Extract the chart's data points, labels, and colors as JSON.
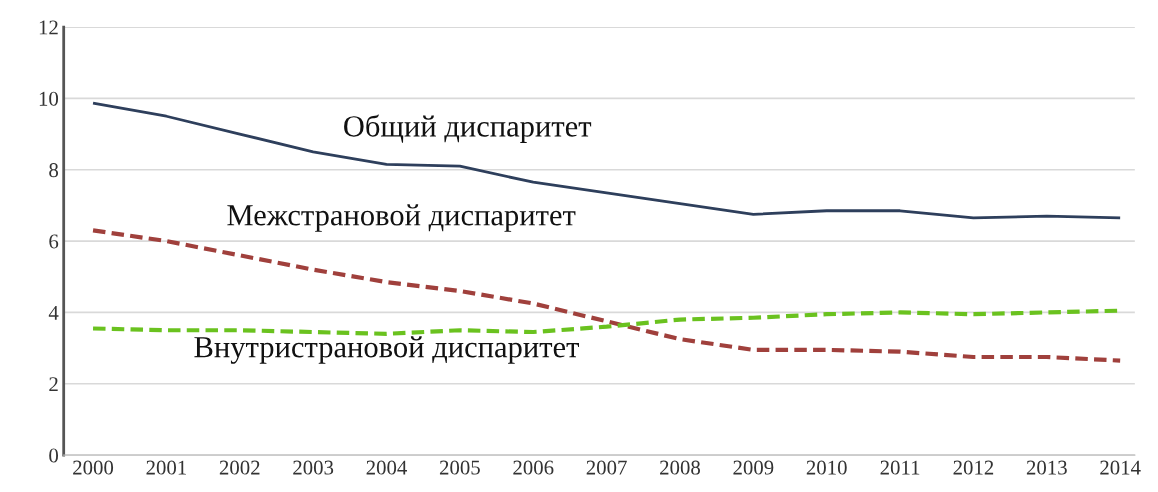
{
  "chart_data": {
    "type": "line",
    "categories": [
      "2000",
      "2001",
      "2002",
      "2003",
      "2004",
      "2005",
      "2006",
      "2007",
      "2008",
      "2009",
      "2010",
      "2011",
      "2012",
      "2013",
      "2014"
    ],
    "series": [
      {
        "name": "Общий диспаритет",
        "color": "#2e3f5c",
        "line_style": "solid",
        "values": [
          9.87,
          9.5,
          9.0,
          8.5,
          8.15,
          8.1,
          7.65,
          7.35,
          7.05,
          6.75,
          6.85,
          6.85,
          6.65,
          6.7,
          6.65
        ]
      },
      {
        "name": "Межстрановой диспаритет",
        "color": "#a0403c",
        "line_style": "dashed",
        "values": [
          6.3,
          6.0,
          5.6,
          5.2,
          4.85,
          4.6,
          4.25,
          3.75,
          3.25,
          2.95,
          2.95,
          2.9,
          2.75,
          2.75,
          2.65
        ]
      },
      {
        "name": "Внутристрановой диспаритет",
        "color": "#6ac21f",
        "line_style": "dashed",
        "values": [
          3.55,
          3.5,
          3.5,
          3.45,
          3.4,
          3.5,
          3.45,
          3.6,
          3.8,
          3.85,
          3.95,
          4.0,
          3.95,
          4.0,
          4.05
        ]
      }
    ],
    "ylim": [
      0,
      12
    ],
    "yticks": [
      0,
      2,
      4,
      6,
      8,
      10,
      12
    ],
    "grid": "y",
    "legend": false
  }
}
